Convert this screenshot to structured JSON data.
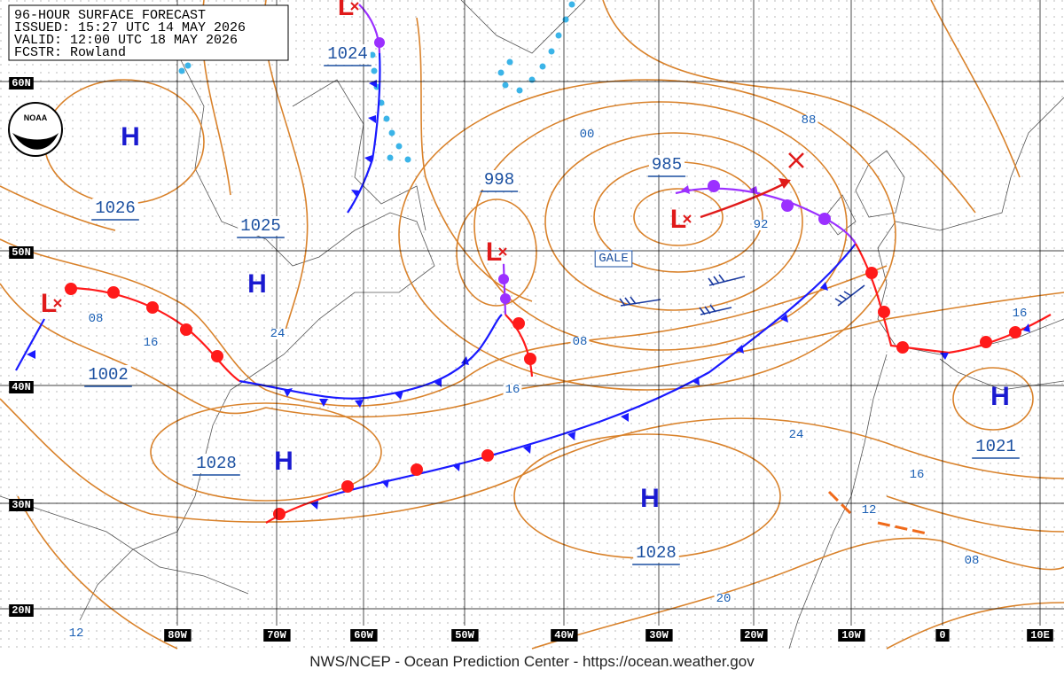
{
  "header": {
    "title": "96-HOUR SURFACE FORECAST",
    "issued": "ISSUED: 15:27 UTC 14 MAY 2026",
    "valid": "VALID: 12:00 UTC 18 MAY 2026",
    "forecaster": "FCSTR: Rowland"
  },
  "logo": "NOAA",
  "latitude_labels": [
    "60N",
    "50N",
    "40N",
    "30N",
    "20N"
  ],
  "longitude_labels": [
    "80W",
    "70W",
    "60W",
    "50W",
    "40W",
    "30W",
    "20W",
    "10W",
    "0",
    "10E"
  ],
  "pressure_centers": [
    {
      "symbol": "H",
      "pressure": "1026"
    },
    {
      "symbol": "H",
      "pressure": "1025"
    },
    {
      "symbol": "L",
      "pressure": "1002"
    },
    {
      "symbol": "H",
      "pressure": "1028"
    },
    {
      "symbol": "L",
      "pressure": "998"
    },
    {
      "symbol": "L",
      "pressure": "985"
    },
    {
      "symbol": "H",
      "pressure": "1028"
    },
    {
      "symbol": "H",
      "pressure": "1021"
    },
    {
      "symbol": "L",
      "pressure": "1024"
    }
  ],
  "isobar_labels": [
    "08",
    "00",
    "88",
    "92",
    "08",
    "16",
    "24",
    "08",
    "16",
    "24",
    "16",
    "12",
    "08",
    "20",
    "12",
    "16"
  ],
  "warning": "GALE",
  "footer": "NWS/NCEP - Ocean Prediction Center - https://ocean.weather.gov"
}
